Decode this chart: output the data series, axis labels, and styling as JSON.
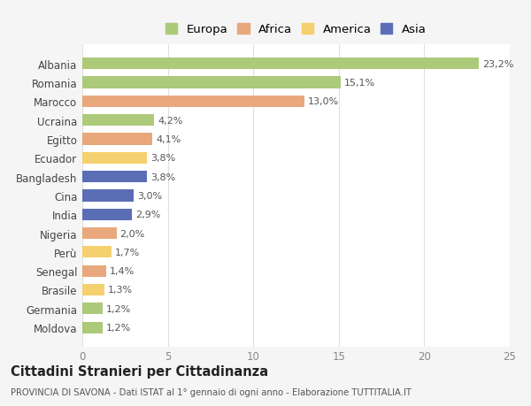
{
  "countries": [
    "Albania",
    "Romania",
    "Marocco",
    "Ucraina",
    "Egitto",
    "Ecuador",
    "Bangladesh",
    "Cina",
    "India",
    "Nigeria",
    "Perù",
    "Senegal",
    "Brasile",
    "Germania",
    "Moldova"
  ],
  "values": [
    23.2,
    15.1,
    13.0,
    4.2,
    4.1,
    3.8,
    3.8,
    3.0,
    2.9,
    2.0,
    1.7,
    1.4,
    1.3,
    1.2,
    1.2
  ],
  "labels": [
    "23,2%",
    "15,1%",
    "13,0%",
    "4,2%",
    "4,1%",
    "3,8%",
    "3,8%",
    "3,0%",
    "2,9%",
    "2,0%",
    "1,7%",
    "1,4%",
    "1,3%",
    "1,2%",
    "1,2%"
  ],
  "colors": [
    "#adc97a",
    "#adc97a",
    "#e8a87c",
    "#adc97a",
    "#e8a87c",
    "#f5d06e",
    "#5b6db5",
    "#5b6db5",
    "#5b6db5",
    "#e8a87c",
    "#f5d06e",
    "#e8a87c",
    "#f5d06e",
    "#adc97a",
    "#adc97a"
  ],
  "legend": {
    "labels": [
      "Europa",
      "Africa",
      "America",
      "Asia"
    ],
    "colors": [
      "#adc97a",
      "#e8a87c",
      "#f5d06e",
      "#5b6db5"
    ]
  },
  "xlim": [
    0,
    25
  ],
  "xticks": [
    0,
    5,
    10,
    15,
    20,
    25
  ],
  "title": "Cittadini Stranieri per Cittadinanza",
  "subtitle": "PROVINCIA DI SAVONA - Dati ISTAT al 1° gennaio di ogni anno - Elaborazione TUTTITALIA.IT",
  "background_color": "#f5f5f5",
  "plot_bg_color": "#ffffff",
  "grid_color": "#e0e0e0"
}
